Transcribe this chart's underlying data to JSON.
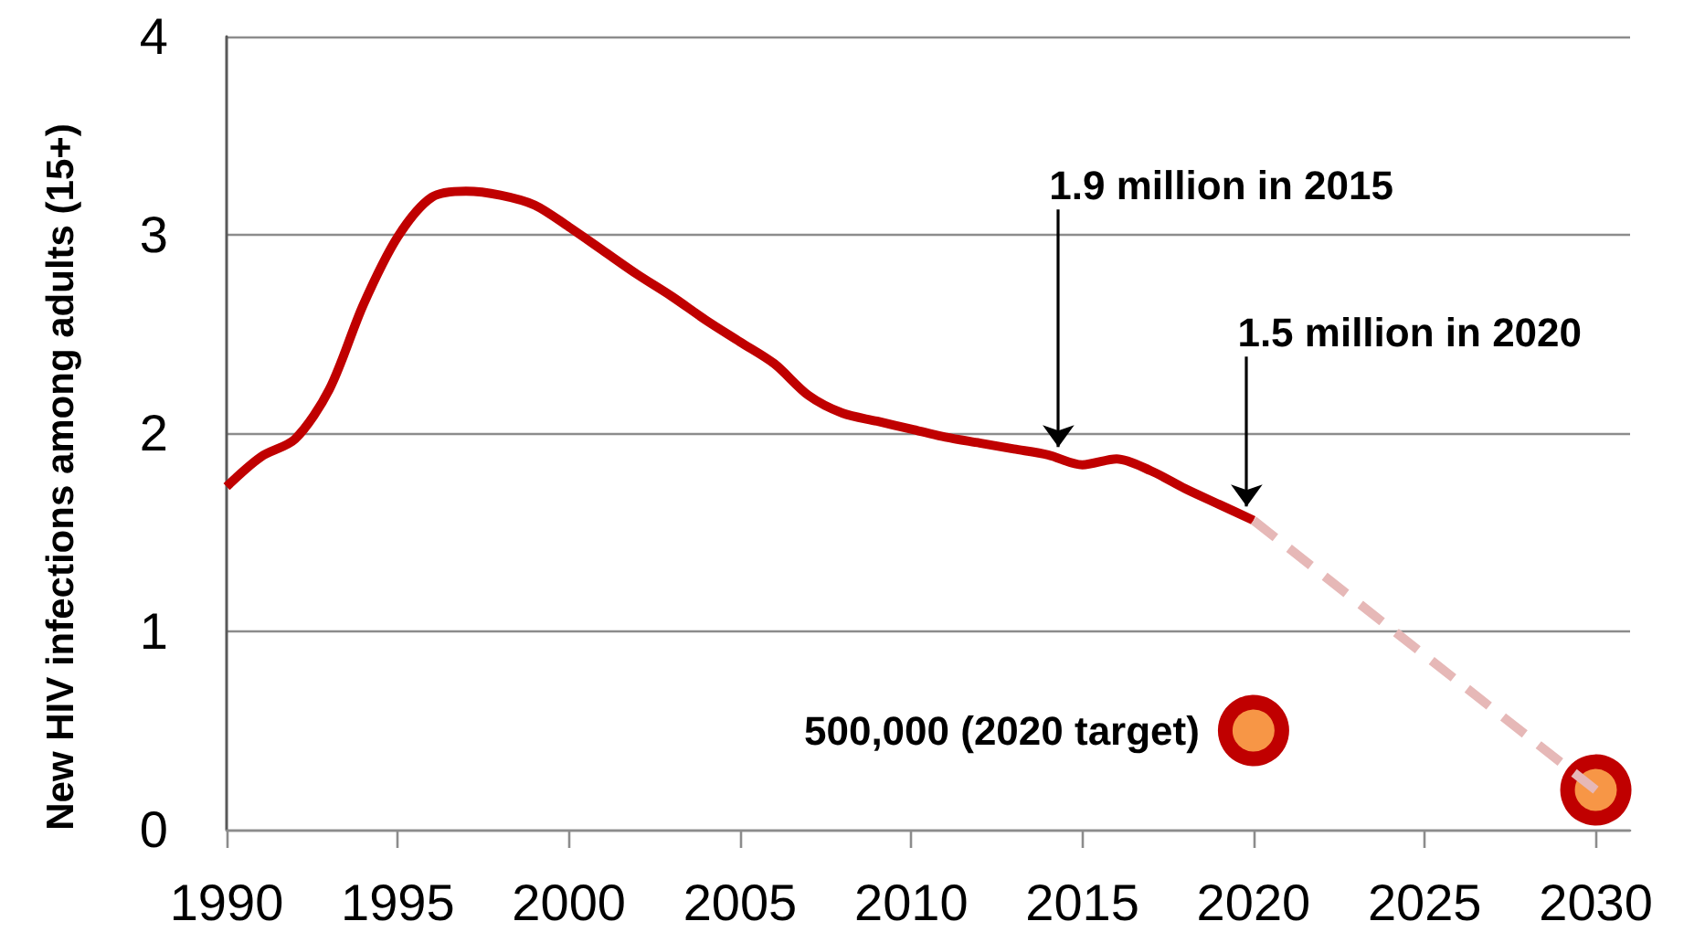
{
  "chart_data": {
    "type": "line",
    "ylabel": "New HIV infections among adults (15+)",
    "xlim": [
      1990,
      2031
    ],
    "xticks": [
      1990,
      1995,
      2000,
      2005,
      2010,
      2015,
      2020,
      2025,
      2030
    ],
    "ylim": [
      0,
      4
    ],
    "yticks": [
      0,
      1,
      2,
      3,
      4
    ],
    "grid": "y",
    "series": [
      {
        "color": "#c00000",
        "marker": "none",
        "line_style": "solid",
        "x": [
          1990,
          1991,
          1992,
          1993,
          1994,
          1995,
          1996,
          1997,
          1998,
          1999,
          2000,
          2001,
          2002,
          2003,
          2004,
          2005,
          2006,
          2007,
          2008,
          2009,
          2010,
          2011,
          2012,
          2013,
          2014,
          2015,
          2016,
          2017,
          2018,
          2019,
          2020
        ],
        "values": [
          1.73,
          1.88,
          1.97,
          2.22,
          2.65,
          2.99,
          3.19,
          3.22,
          3.2,
          3.15,
          3.04,
          2.92,
          2.8,
          2.69,
          2.57,
          2.46,
          2.35,
          2.19,
          2.1,
          2.06,
          2.02,
          1.98,
          1.95,
          1.92,
          1.89,
          1.84,
          1.87,
          1.81,
          1.72,
          1.64,
          1.56
        ]
      },
      {
        "color": "#e6b8b7",
        "marker": "none",
        "line_style": "dashed",
        "x": [
          2020,
          2030
        ],
        "values": [
          1.56,
          0.2
        ]
      },
      {
        "type": "scatter",
        "color": "#f79646",
        "marker": "circle",
        "x": [
          2020,
          2030
        ],
        "values": [
          0.5,
          0.2
        ],
        "value_labels": [
          "500,000 (2020 target)",
          null
        ]
      }
    ],
    "annotations": [
      {
        "text": "1.9 million in 2015",
        "x": 2014.3,
        "y": 1.93
      },
      {
        "text": "1.5 million in 2020",
        "x": 2019.8,
        "y": 1.63
      }
    ]
  }
}
